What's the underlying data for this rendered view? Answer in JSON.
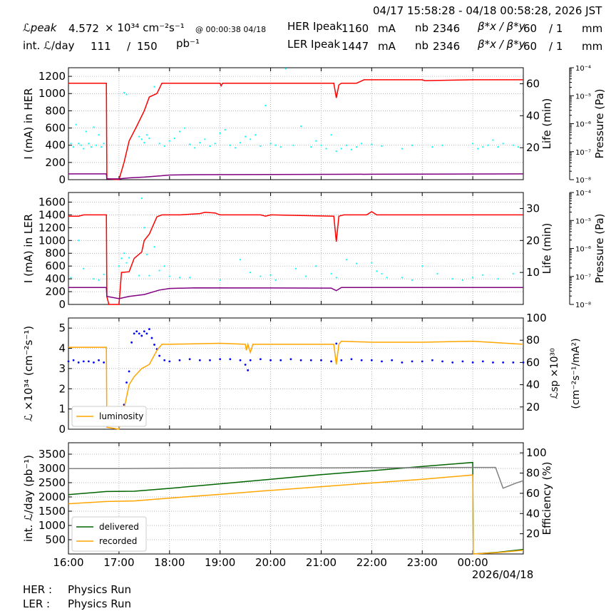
{
  "header": {
    "date_range": "04/17 15:58:28 - 04/18 00:58:28, 2026 JST",
    "lpeak_label": "ℒpeak",
    "lpeak_value": "4.572",
    "lpeak_unit": "× 10³⁴ cm⁻²s⁻¹",
    "lpeak_time": "@ 00:00:38 04/18",
    "intl_label": "int. ℒ/day",
    "intl_value": "111",
    "intl_sep": "/",
    "intl_total": "150",
    "intl_unit": "pb⁻¹",
    "her_label": "HER Ipeak",
    "her_value": "1160",
    "her_unit": "mA",
    "her_nb_label": "nb",
    "her_nb": "2346",
    "her_beta_label": "β*x / β*y",
    "her_beta_x": "60",
    "her_beta_y": "/ 1",
    "her_beta_unit": "mm",
    "ler_label": "LER Ipeak",
    "ler_value": "1447",
    "ler_unit": "mA",
    "ler_nb_label": "nb",
    "ler_nb": "2346",
    "ler_beta_label": "β*x / β*y",
    "ler_beta_x": "60",
    "ler_beta_y": "/ 1",
    "ler_beta_unit": "mm"
  },
  "footer": {
    "her_label": "HER :",
    "her_status": "Physics Run",
    "ler_label": "LER :",
    "ler_status": "Physics Run"
  },
  "chart_data": [
    {
      "type": "line",
      "ylabel": "I (mA) in HER",
      "ylim": [
        0,
        1300
      ],
      "yticks": [
        0,
        200,
        400,
        600,
        800,
        1000,
        1200
      ],
      "y2label": "Life (min)",
      "y2lim": [
        0,
        70
      ],
      "y2ticks": [
        20,
        40,
        60
      ],
      "y3label": "Pressure (Pa)",
      "y3ticks": [
        "10⁻⁸",
        "10⁻⁷",
        "10⁻⁶",
        "10⁻⁵",
        "10⁻⁴"
      ],
      "colors": {
        "current": "#ff0000",
        "life": "#800080",
        "pressure": "#00ffff"
      },
      "grid": true,
      "series": [
        {
          "key": "current",
          "color": "#ff0000",
          "axis": "left",
          "x": [
            16.0,
            16.75,
            16.76,
            17.0,
            17.1,
            17.2,
            17.35,
            17.5,
            17.6,
            17.75,
            17.85,
            18.2,
            19.0,
            19.02,
            19.05,
            20.0,
            21.25,
            21.3,
            21.35,
            21.4,
            21.7,
            21.85,
            22.0,
            23.0,
            23.05,
            24.0,
            25.0
          ],
          "y": [
            1120,
            1120,
            10,
            0,
            200,
            450,
            620,
            800,
            960,
            1000,
            1120,
            1120,
            1120,
            1090,
            1120,
            1120,
            1120,
            950,
            1100,
            1120,
            1120,
            1160,
            1160,
            1160,
            1150,
            1160,
            1160
          ]
        },
        {
          "key": "life",
          "color": "#800080",
          "axis": "right",
          "x": [
            16.0,
            16.75,
            16.76,
            17.0,
            17.2,
            17.5,
            17.8,
            18.0,
            18.5,
            20.0,
            22.0,
            25.0
          ],
          "y": [
            3.6,
            3.6,
            0.5,
            0.5,
            1.1,
            1.6,
            2.3,
            2.9,
            3.1,
            3.2,
            3.4,
            3.6
          ]
        }
      ],
      "scatter": {
        "key": "pressure",
        "color": "#00ffff",
        "x": [
          16.05,
          16.1,
          16.15,
          16.2,
          16.25,
          16.3,
          16.35,
          16.4,
          16.45,
          16.5,
          16.55,
          16.6,
          16.65,
          16.7,
          17.1,
          17.15,
          17.4,
          17.45,
          17.5,
          17.55,
          17.6,
          17.7,
          17.8,
          17.9,
          18.0,
          18.1,
          18.2,
          18.3,
          18.4,
          18.5,
          18.6,
          18.7,
          18.8,
          18.9,
          19.0,
          19.1,
          19.2,
          19.3,
          19.4,
          19.5,
          19.6,
          19.7,
          19.8,
          19.9,
          20.0,
          20.1,
          20.2,
          20.3,
          20.45,
          20.6,
          20.8,
          20.9,
          21.0,
          21.1,
          21.2,
          21.3,
          21.4,
          21.5,
          21.6,
          21.7,
          21.8,
          22.0,
          22.2,
          22.6,
          22.8,
          23.2,
          23.4,
          24.0,
          24.1,
          24.2,
          24.3,
          24.4,
          24.5,
          24.6,
          24.8,
          24.9
        ],
        "y": [
          420,
          380,
          640,
          420,
          400,
          360,
          560,
          420,
          380,
          610,
          400,
          520,
          380,
          420,
          1010,
          990,
          500,
          470,
          430,
          520,
          480,
          1080,
          420,
          390,
          450,
          480,
          560,
          600,
          410,
          370,
          430,
          470,
          390,
          420,
          540,
          580,
          400,
          370,
          430,
          500,
          470,
          520,
          390,
          860,
          420,
          400,
          380,
          1290,
          400,
          620,
          380,
          450,
          400,
          360,
          520,
          330,
          360,
          400,
          350,
          380,
          420,
          410,
          390,
          360,
          400,
          380,
          400,
          420,
          360,
          380,
          400,
          460,
          380,
          420,
          400,
          380
        ]
      }
    },
    {
      "type": "line",
      "ylabel": "I (mA) in LER",
      "ylim": [
        0,
        1750
      ],
      "yticks": [
        0,
        200,
        400,
        600,
        800,
        1000,
        1200,
        1400,
        1600
      ],
      "y2label": "Life (min)",
      "y2lim": [
        0,
        35
      ],
      "y2ticks": [
        10,
        20,
        30
      ],
      "y3label": "Pressure (Pa)",
      "y3ticks": [
        "10⁻⁸",
        "10⁻⁷",
        "10⁻⁶",
        "10⁻⁵",
        "10⁻⁴"
      ],
      "colors": {
        "current": "#ff0000",
        "life": "#800080",
        "pressure": "#00ffff"
      },
      "grid": true,
      "series": [
        {
          "key": "current",
          "color": "#ff0000",
          "axis": "left",
          "x": [
            16.0,
            16.2,
            16.3,
            16.75,
            16.76,
            16.8,
            17.0,
            17.05,
            17.2,
            17.3,
            17.45,
            17.5,
            17.6,
            17.75,
            17.85,
            18.2,
            18.6,
            18.7,
            18.9,
            19.0,
            19.1,
            19.8,
            19.9,
            20.0,
            21.25,
            21.3,
            21.35,
            21.45,
            21.9,
            22.0,
            22.1,
            25.0
          ],
          "y": [
            1380,
            1380,
            1400,
            1400,
            120,
            0,
            0,
            500,
            510,
            720,
            820,
            1000,
            1100,
            1370,
            1400,
            1400,
            1420,
            1440,
            1430,
            1400,
            1400,
            1400,
            1380,
            1400,
            1380,
            980,
            1380,
            1400,
            1400,
            1450,
            1400,
            1400
          ]
        },
        {
          "key": "life",
          "color": "#800080",
          "axis": "right",
          "x": [
            16.0,
            16.75,
            16.76,
            17.0,
            17.2,
            17.5,
            17.8,
            18.0,
            18.5,
            21.2,
            21.3,
            21.4,
            25.0
          ],
          "y": [
            5.3,
            5.3,
            2.5,
            1.8,
            2.5,
            3.1,
            4.5,
            5.0,
            5.2,
            5.1,
            4.3,
            5.3,
            5.3
          ]
        }
      ],
      "scatter": {
        "key": "pressure",
        "color": "#00ffff",
        "x": [
          16.05,
          16.2,
          16.3,
          16.5,
          16.6,
          16.7,
          17.0,
          17.05,
          17.1,
          17.15,
          17.2,
          17.4,
          17.45,
          17.5,
          17.55,
          17.6,
          17.7,
          17.8,
          17.9,
          18.0,
          18.2,
          18.4,
          19.0,
          19.4,
          19.6,
          19.8,
          20.0,
          20.1,
          20.5,
          20.7,
          20.9,
          21.2,
          21.3,
          21.5,
          21.7,
          22.0,
          22.1,
          22.2,
          22.3,
          22.6,
          22.8,
          23.0,
          23.3,
          23.6,
          23.8,
          24.0,
          24.2,
          24.5,
          24.8
        ],
        "y": [
          420,
          1000,
          560,
          400,
          380,
          470,
          600,
          720,
          800,
          650,
          730,
          450,
          1660,
          1200,
          780,
          450,
          900,
          530,
          600,
          440,
          420,
          420,
          380,
          700,
          500,
          440,
          460,
          380,
          560,
          440,
          600,
          480,
          420,
          700,
          640,
          650,
          520,
          480,
          420,
          420,
          380,
          600,
          480,
          400,
          380,
          420,
          460,
          400,
          480
        ]
      }
    },
    {
      "type": "scatter",
      "ylabel": "ℒ ×10³⁴ (cm⁻²s⁻¹)",
      "ylim": [
        0,
        5.5
      ],
      "yticks": [
        0,
        1,
        2,
        3,
        4,
        5
      ],
      "y2label_line1": "ℒsp ×10³⁰",
      "y2label_line2": "(cm⁻²s⁻¹/mA²)",
      "y2lim": [
        0,
        100
      ],
      "y2ticks": [
        20,
        40,
        60,
        80,
        100
      ],
      "legend": [
        "luminosity"
      ],
      "legend_loc": "lower-left",
      "colors": {
        "luminosity": "#ffa500",
        "specific": "#0000ff"
      },
      "grid": true,
      "series": [
        {
          "name": "luminosity",
          "color": "#ffa500",
          "axis": "left",
          "x": [
            16.0,
            16.75,
            16.76,
            17.0,
            17.1,
            17.2,
            17.3,
            17.45,
            17.6,
            17.75,
            17.85,
            18.0,
            19.0,
            19.5,
            19.52,
            19.55,
            19.6,
            19.65,
            20.0,
            21.25,
            21.3,
            21.35,
            21.4,
            22.0,
            23.0,
            24.0,
            25.0
          ],
          "y": [
            4.05,
            4.05,
            0.1,
            0.0,
            1.0,
            2.2,
            2.6,
            3.0,
            3.2,
            3.9,
            4.2,
            4.2,
            4.25,
            4.2,
            3.9,
            4.2,
            3.8,
            4.2,
            4.2,
            4.2,
            3.2,
            4.2,
            4.35,
            4.3,
            4.3,
            4.35,
            4.2
          ]
        }
      ],
      "scatter": {
        "key": "specific",
        "color": "#0000ff",
        "axis": "right",
        "x": [
          16.0,
          16.1,
          16.2,
          16.3,
          16.4,
          16.5,
          16.6,
          16.7,
          17.05,
          17.1,
          17.15,
          17.2,
          17.25,
          17.3,
          17.35,
          17.4,
          17.45,
          17.5,
          17.55,
          17.6,
          17.65,
          17.7,
          17.75,
          17.8,
          17.9,
          18.0,
          18.2,
          18.4,
          18.6,
          18.8,
          19.0,
          19.2,
          19.4,
          19.5,
          19.55,
          19.6,
          19.8,
          20.0,
          20.2,
          20.4,
          20.6,
          20.8,
          21.0,
          21.2,
          21.3,
          21.4,
          21.6,
          21.8,
          22.0,
          22.2,
          22.4,
          22.6,
          22.8,
          23.0,
          23.2,
          23.4,
          23.6,
          23.8,
          24.0,
          24.2,
          24.4,
          24.6,
          24.8,
          25.0
        ],
        "y": [
          61,
          62,
          60,
          61,
          61,
          60,
          62,
          60,
          20,
          22,
          42,
          52,
          78,
          86,
          88,
          86,
          84,
          88,
          86,
          90,
          82,
          76,
          72,
          66,
          62,
          61,
          62,
          63,
          62,
          62,
          63,
          63,
          62,
          58,
          53,
          62,
          63,
          62,
          62,
          63,
          62,
          62,
          62,
          61,
          77,
          62,
          63,
          62,
          62,
          61,
          62,
          60,
          61,
          61,
          62,
          61,
          60,
          61,
          60,
          61,
          60,
          60,
          60,
          60
        ]
      }
    },
    {
      "type": "line",
      "ylabel": "int. ℒ/day (pb⁻¹)",
      "ylim": [
        0,
        3900
      ],
      "yticks": [
        500,
        1000,
        1500,
        2000,
        2500,
        3000,
        3500
      ],
      "y2label": "Efficiency (%)",
      "y2lim": [
        0,
        110
      ],
      "y2ticks": [
        20,
        40,
        60,
        80,
        100
      ],
      "xticks": [
        "16:00",
        "17:00",
        "18:00",
        "19:00",
        "20:00",
        "21:00",
        "22:00",
        "23:00",
        "00:00"
      ],
      "xdate": "2026/04/18",
      "legend": [
        "delivered",
        "recorded"
      ],
      "legend_loc": "lower-left",
      "colors": {
        "delivered": "#006400",
        "recorded": "#ffa500",
        "efficiency": "#808080"
      },
      "grid": true,
      "series": [
        {
          "name": "delivered",
          "color": "#006400",
          "axis": "left",
          "x": [
            16.0,
            16.75,
            17.3,
            18.0,
            19.0,
            20.0,
            21.0,
            22.0,
            23.0,
            24.0,
            24.01,
            24.5,
            25.0
          ],
          "y": [
            2080,
            2190,
            2200,
            2300,
            2460,
            2620,
            2780,
            2920,
            3070,
            3210,
            0,
            60,
            160
          ]
        },
        {
          "name": "recorded",
          "color": "#ffa500",
          "axis": "left",
          "x": [
            16.0,
            16.75,
            17.3,
            18.0,
            19.0,
            20.0,
            21.0,
            22.0,
            23.0,
            24.0,
            24.01,
            24.5,
            25.0
          ],
          "y": [
            1760,
            1840,
            1860,
            1960,
            2090,
            2230,
            2360,
            2490,
            2620,
            2770,
            0,
            50,
            130
          ]
        },
        {
          "key": "efficiency",
          "color": "#808080",
          "axis": "right",
          "x": [
            16.0,
            17.0,
            18.0,
            19.0,
            20.0,
            21.0,
            22.0,
            23.0,
            24.0,
            24.45,
            24.6,
            24.85,
            25.0
          ],
          "y": [
            84.5,
            84.5,
            84.8,
            85.0,
            85.2,
            85.2,
            85.3,
            85.3,
            85.6,
            85.6,
            65.0,
            70.0,
            72.5
          ]
        }
      ]
    }
  ]
}
